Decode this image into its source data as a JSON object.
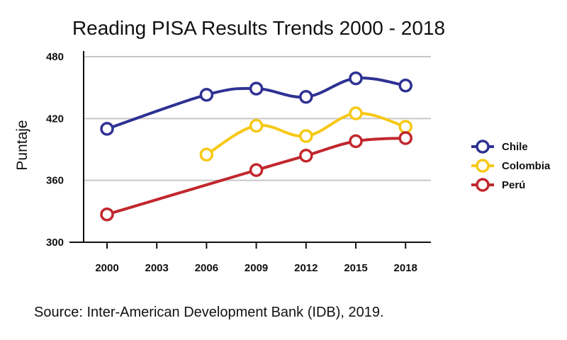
{
  "chart_data": {
    "type": "line",
    "title": "Reading PISA Results Trends 2000 - 2018",
    "xlabel": "",
    "ylabel": "Puntaje",
    "categories": [
      "2000",
      "2003",
      "2006",
      "2009",
      "2012",
      "2015",
      "2018"
    ],
    "y_ticks": [
      "480",
      "420",
      "360",
      "300"
    ],
    "ylim": [
      300,
      480
    ],
    "grid": "horizontal",
    "legend_position": "right",
    "series": [
      {
        "name": "Chile",
        "color": "#2e3192",
        "values": [
          410,
          null,
          443,
          449,
          441,
          459,
          452
        ]
      },
      {
        "name": "Colombia",
        "color": "#f7c815",
        "values": [
          null,
          null,
          385,
          413,
          403,
          425,
          412
        ]
      },
      {
        "name": "Perú",
        "color": "#c1272d",
        "values": [
          327,
          null,
          null,
          370,
          384,
          398,
          401
        ]
      }
    ],
    "source": "Source: Inter-American Development Bank (IDB), 2019."
  }
}
